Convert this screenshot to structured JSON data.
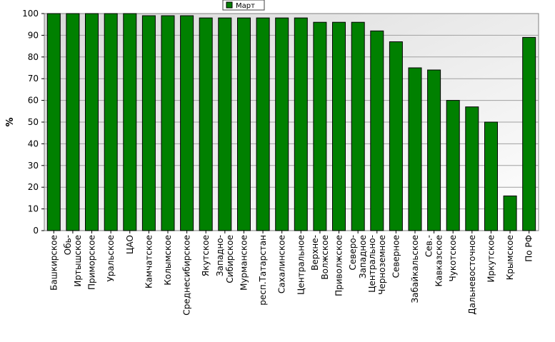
{
  "chart_data": {
    "type": "bar",
    "title": "",
    "xlabel": "",
    "ylabel": "%",
    "ylim": [
      0,
      100
    ],
    "yticks": [
      0,
      10,
      20,
      30,
      40,
      50,
      60,
      70,
      80,
      90,
      100
    ],
    "grid": true,
    "legend_position": "top-center",
    "categories": [
      "Башкирское",
      "Обь-Иртышское",
      "Приморское",
      "Уральское",
      "ЦАО",
      "Камчатское",
      "Колымское",
      "Среднесибирское",
      "Якутское",
      "Западно-Сибирское",
      "Мурманское",
      "респ.Татарстан",
      "Сахалинское",
      "Центральное",
      "Верхне-Волжское",
      "Приволжское",
      "Северо-Западное",
      "Центрально-Черноземное",
      "Северное",
      "Забайкальское",
      "Сев.-Кавказское",
      "Чукотское",
      "Дальневосточное",
      "Иркутское",
      "Крымское",
      "По РФ"
    ],
    "category_lines": [
      [
        "Башкирское"
      ],
      [
        "Обь-",
        "Иртышское"
      ],
      [
        "Приморское"
      ],
      [
        "Уральское"
      ],
      [
        "ЦАО"
      ],
      [
        "Камчатское"
      ],
      [
        "Колымское"
      ],
      [
        "Среднесибирское"
      ],
      [
        "Якутское"
      ],
      [
        "Западно-",
        "Сибирское"
      ],
      [
        "Мурманское"
      ],
      [
        "респ.Татарстан"
      ],
      [
        "Сахалинское"
      ],
      [
        "Центральное"
      ],
      [
        "Верхне-",
        "Волжское"
      ],
      [
        "Приволжское"
      ],
      [
        "Северо-",
        "Западное"
      ],
      [
        "Центрально-",
        "Черноземное"
      ],
      [
        "Северное"
      ],
      [
        "Забайкальское"
      ],
      [
        "Сев.-",
        "Кавказское"
      ],
      [
        "Чукотское"
      ],
      [
        "Дальневосточное"
      ],
      [
        "Иркутское"
      ],
      [
        "Крымское"
      ],
      [
        "По РФ"
      ]
    ],
    "series": [
      {
        "name": "Март",
        "color": "#008000",
        "values": [
          100,
          100,
          100,
          100,
          100,
          99,
          99,
          99,
          98,
          98,
          98,
          98,
          98,
          98,
          96,
          96,
          96,
          92,
          87,
          75,
          74,
          60,
          57,
          50,
          16,
          89
        ]
      }
    ]
  },
  "colors": {
    "bar_fill": "#008000",
    "bar_stroke": "#000000",
    "plot_bg_top": "#dcdcdc",
    "plot_bg_bottom": "#ffffff",
    "grid": "#a0a0a0"
  }
}
